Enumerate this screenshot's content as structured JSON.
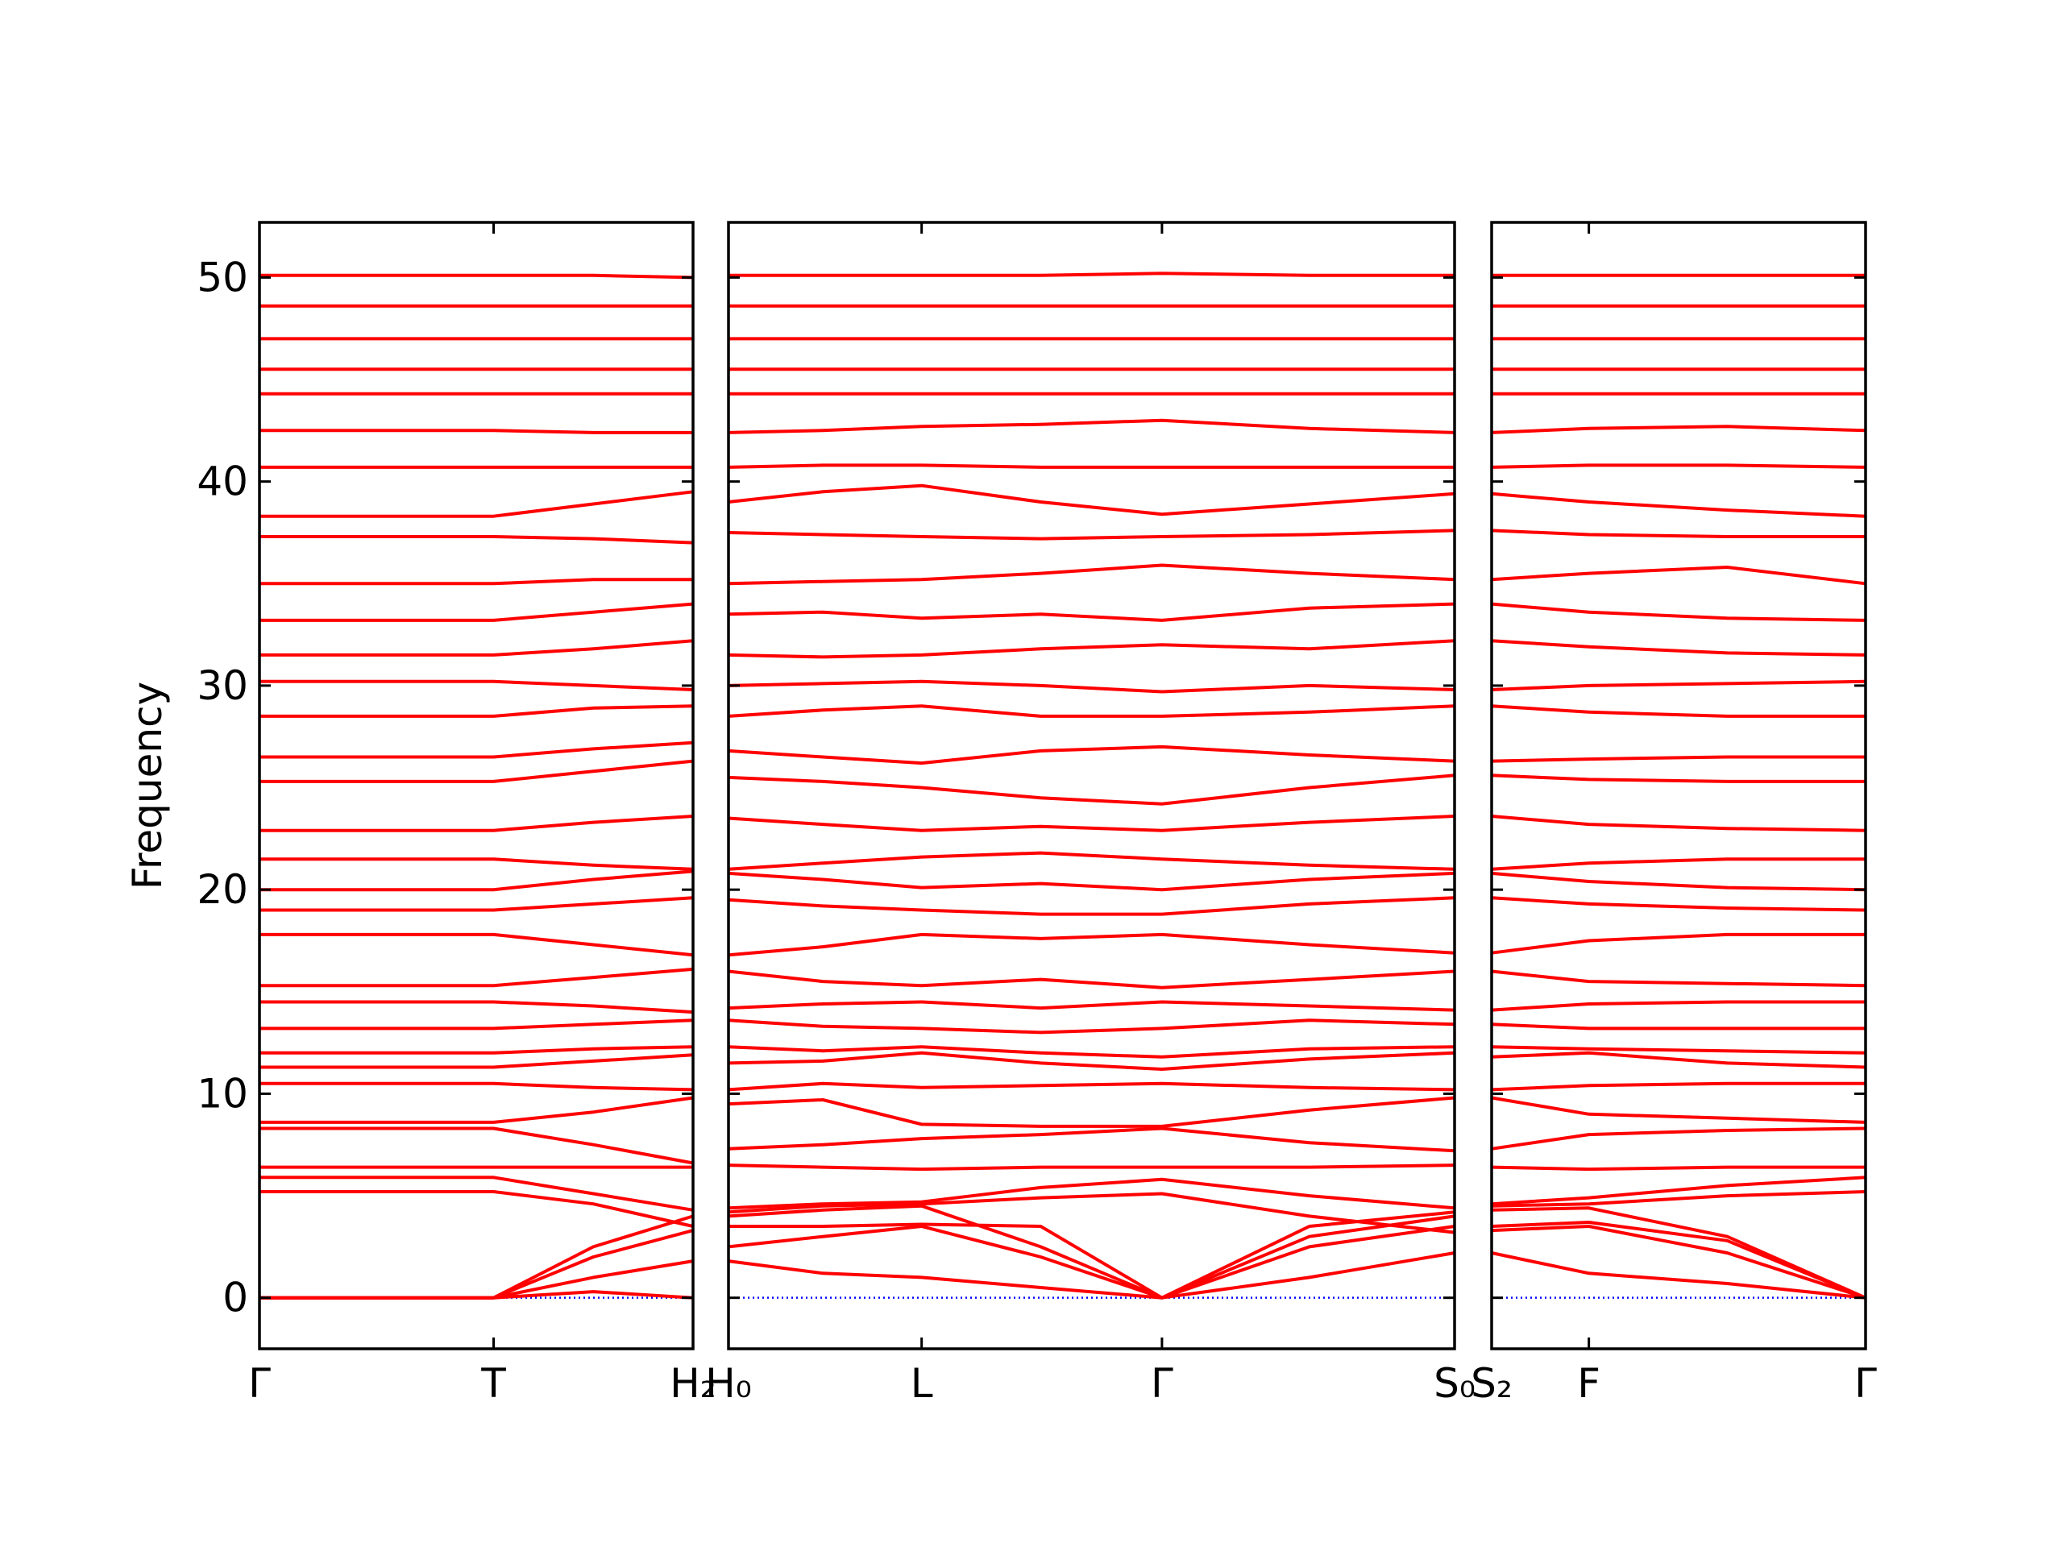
{
  "chart_data": [
    {
      "type": "line",
      "ylabel": "Frequency",
      "color": "red",
      "ylim": [
        -2.5,
        52.7
      ],
      "yticks": [
        0,
        10,
        20,
        30,
        40,
        50
      ],
      "show_ytick_labels": true,
      "zero_line": {
        "y": 0,
        "color": "blue",
        "style": "dotted"
      },
      "xlim": [
        0,
        1
      ],
      "xticks": [
        {
          "value": 0,
          "label": "Γ"
        },
        {
          "value": 0.54,
          "label": "T"
        },
        {
          "value": 1,
          "label": "H₂"
        }
      ],
      "x": [
        0,
        0.27,
        0.54,
        0.77,
        1
      ],
      "series": [
        {
          "values": [
            0,
            0,
            0,
            0.3,
            0
          ]
        },
        {
          "values": [
            0,
            0,
            0,
            1,
            1.8
          ]
        },
        {
          "values": [
            0,
            0,
            0,
            2,
            3.3
          ]
        },
        {
          "values": [
            0,
            0,
            0,
            2.5,
            4
          ]
        },
        {
          "values": [
            5.2,
            5.2,
            5.2,
            4.6,
            3.5
          ]
        },
        {
          "values": [
            5.9,
            5.9,
            5.9,
            5.1,
            4.3
          ]
        },
        {
          "values": [
            6.4,
            6.4,
            6.4,
            6.4,
            6.4
          ]
        },
        {
          "values": [
            8.3,
            8.3,
            8.3,
            7.5,
            6.6
          ]
        },
        {
          "values": [
            8.6,
            8.6,
            8.6,
            9.1,
            9.8
          ]
        },
        {
          "values": [
            10.5,
            10.5,
            10.5,
            10.3,
            10.2
          ]
        },
        {
          "values": [
            11.3,
            11.3,
            11.3,
            11.6,
            11.9
          ]
        },
        {
          "values": [
            12,
            12,
            12,
            12.2,
            12.3
          ]
        },
        {
          "values": [
            13.2,
            13.2,
            13.2,
            13.4,
            13.6
          ]
        },
        {
          "values": [
            14.5,
            14.5,
            14.5,
            14.3,
            14
          ]
        },
        {
          "values": [
            15.3,
            15.3,
            15.3,
            15.7,
            16.1
          ]
        },
        {
          "values": [
            17.8,
            17.8,
            17.8,
            17.3,
            16.8
          ]
        },
        {
          "values": [
            19,
            19,
            19,
            19.3,
            19.6
          ]
        },
        {
          "values": [
            20,
            20,
            20,
            20.5,
            20.9
          ]
        },
        {
          "values": [
            21.5,
            21.5,
            21.5,
            21.2,
            21
          ]
        },
        {
          "values": [
            22.9,
            22.9,
            22.9,
            23.3,
            23.6
          ]
        },
        {
          "values": [
            25.3,
            25.3,
            25.3,
            25.8,
            26.3
          ]
        },
        {
          "values": [
            26.5,
            26.5,
            26.5,
            26.9,
            27.2
          ]
        },
        {
          "values": [
            28.5,
            28.5,
            28.5,
            28.9,
            29
          ]
        },
        {
          "values": [
            30.2,
            30.2,
            30.2,
            30,
            29.8
          ]
        },
        {
          "values": [
            31.5,
            31.5,
            31.5,
            31.8,
            32.2
          ]
        },
        {
          "values": [
            33.2,
            33.2,
            33.2,
            33.6,
            34
          ]
        },
        {
          "values": [
            35,
            35,
            35,
            35.2,
            35.2
          ]
        },
        {
          "values": [
            37.3,
            37.3,
            37.3,
            37.2,
            37
          ]
        },
        {
          "values": [
            38.3,
            38.3,
            38.3,
            38.9,
            39.5
          ]
        },
        {
          "values": [
            40.7,
            40.7,
            40.7,
            40.7,
            40.7
          ]
        },
        {
          "values": [
            42.5,
            42.5,
            42.5,
            42.4,
            42.4
          ]
        },
        {
          "values": [
            44.3,
            44.3,
            44.3,
            44.3,
            44.3
          ]
        },
        {
          "values": [
            45.5,
            45.5,
            45.5,
            45.5,
            45.5
          ]
        },
        {
          "values": [
            47,
            47,
            47,
            47,
            47
          ]
        },
        {
          "values": [
            48.6,
            48.6,
            48.6,
            48.6,
            48.6
          ]
        },
        {
          "values": [
            50.1,
            50.1,
            50.1,
            50.1,
            50
          ]
        }
      ]
    },
    {
      "type": "line",
      "color": "red",
      "ylim": [
        -2.5,
        52.7
      ],
      "yticks": [
        0,
        10,
        20,
        30,
        40,
        50
      ],
      "show_ytick_labels": false,
      "zero_line": {
        "y": 0,
        "color": "blue",
        "style": "dotted"
      },
      "xlim": [
        0,
        1
      ],
      "xticks": [
        {
          "value": 0,
          "label": "H₀"
        },
        {
          "value": 0.266,
          "label": "L"
        },
        {
          "value": 0.597,
          "label": "Γ"
        },
        {
          "value": 1,
          "label": "S₀"
        }
      ],
      "x": [
        0,
        0.13,
        0.266,
        0.43,
        0.597,
        0.8,
        1
      ],
      "series": [
        {
          "values": [
            1.8,
            1.2,
            1,
            0.5,
            0,
            1,
            2.2
          ]
        },
        {
          "values": [
            2.5,
            3,
            3.5,
            2,
            0,
            2.5,
            3.5
          ]
        },
        {
          "values": [
            3.5,
            3.5,
            3.6,
            3.5,
            0,
            3,
            4
          ]
        },
        {
          "values": [
            4,
            4.3,
            4.5,
            2.5,
            0,
            3.5,
            4.2
          ]
        },
        {
          "values": [
            4.2,
            4.5,
            4.6,
            4.9,
            5.1,
            4,
            3.2
          ]
        },
        {
          "values": [
            4.4,
            4.6,
            4.7,
            5.4,
            5.8,
            5,
            4.4
          ]
        },
        {
          "values": [
            6.5,
            6.4,
            6.3,
            6.4,
            6.4,
            6.4,
            6.5
          ]
        },
        {
          "values": [
            7.3,
            7.5,
            7.8,
            8,
            8.3,
            7.6,
            7.2
          ]
        },
        {
          "values": [
            9.5,
            9.7,
            8.5,
            8.4,
            8.4,
            9.2,
            9.8
          ]
        },
        {
          "values": [
            10.2,
            10.5,
            10.3,
            10.4,
            10.5,
            10.3,
            10.2
          ]
        },
        {
          "values": [
            11.5,
            11.6,
            12,
            11.5,
            11.2,
            11.7,
            12
          ]
        },
        {
          "values": [
            12.3,
            12.1,
            12.3,
            12,
            11.8,
            12.2,
            12.3
          ]
        },
        {
          "values": [
            13.6,
            13.3,
            13.2,
            13,
            13.2,
            13.6,
            13.4
          ]
        },
        {
          "values": [
            14.2,
            14.4,
            14.5,
            14.2,
            14.5,
            14.3,
            14.1
          ]
        },
        {
          "values": [
            16,
            15.5,
            15.3,
            15.6,
            15.2,
            15.6,
            16
          ]
        },
        {
          "values": [
            16.8,
            17.2,
            17.8,
            17.6,
            17.8,
            17.3,
            16.9
          ]
        },
        {
          "values": [
            19.5,
            19.2,
            19,
            18.8,
            18.8,
            19.3,
            19.6
          ]
        },
        {
          "values": [
            20.8,
            20.5,
            20.1,
            20.3,
            20,
            20.5,
            20.8
          ]
        },
        {
          "values": [
            21,
            21.3,
            21.6,
            21.8,
            21.5,
            21.2,
            21
          ]
        },
        {
          "values": [
            23.5,
            23.2,
            22.9,
            23.1,
            22.9,
            23.3,
            23.6
          ]
        },
        {
          "values": [
            25.5,
            25.3,
            25,
            24.5,
            24.2,
            25,
            25.6
          ]
        },
        {
          "values": [
            26.8,
            26.5,
            26.2,
            26.8,
            27,
            26.6,
            26.3
          ]
        },
        {
          "values": [
            28.5,
            28.8,
            29,
            28.5,
            28.5,
            28.7,
            29
          ]
        },
        {
          "values": [
            30,
            30.1,
            30.2,
            30,
            29.7,
            30,
            29.8
          ]
        },
        {
          "values": [
            31.5,
            31.4,
            31.5,
            31.8,
            32,
            31.8,
            32.2
          ]
        },
        {
          "values": [
            33.5,
            33.6,
            33.3,
            33.5,
            33.2,
            33.8,
            34
          ]
        },
        {
          "values": [
            35,
            35.1,
            35.2,
            35.5,
            35.9,
            35.5,
            35.2
          ]
        },
        {
          "values": [
            37.5,
            37.4,
            37.3,
            37.2,
            37.3,
            37.4,
            37.6
          ]
        },
        {
          "values": [
            39,
            39.5,
            39.8,
            39,
            38.4,
            38.9,
            39.4
          ]
        },
        {
          "values": [
            40.7,
            40.8,
            40.8,
            40.7,
            40.7,
            40.7,
            40.7
          ]
        },
        {
          "values": [
            42.4,
            42.5,
            42.7,
            42.8,
            43,
            42.6,
            42.4
          ]
        },
        {
          "values": [
            44.3,
            44.3,
            44.3,
            44.3,
            44.3,
            44.3,
            44.3
          ]
        },
        {
          "values": [
            45.5,
            45.5,
            45.5,
            45.5,
            45.5,
            45.5,
            45.5
          ]
        },
        {
          "values": [
            47,
            47,
            47,
            47,
            47,
            47,
            47
          ]
        },
        {
          "values": [
            48.6,
            48.6,
            48.6,
            48.6,
            48.6,
            48.6,
            48.6
          ]
        },
        {
          "values": [
            50.1,
            50.1,
            50.1,
            50.1,
            50.2,
            50.1,
            50.1
          ]
        }
      ]
    },
    {
      "type": "line",
      "color": "red",
      "ylim": [
        -2.5,
        52.7
      ],
      "yticks": [
        0,
        10,
        20,
        30,
        40,
        50
      ],
      "show_ytick_labels": false,
      "zero_line": {
        "y": 0,
        "color": "blue",
        "style": "dotted"
      },
      "xlim": [
        0,
        1
      ],
      "xticks": [
        {
          "value": 0,
          "label": "S₂"
        },
        {
          "value": 0.26,
          "label": "F"
        },
        {
          "value": 1,
          "label": "Γ"
        }
      ],
      "x": [
        0,
        0.26,
        0.63,
        1
      ],
      "series": [
        {
          "values": [
            2.2,
            1.2,
            0.7,
            0
          ]
        },
        {
          "values": [
            3.3,
            3.5,
            2.2,
            0
          ]
        },
        {
          "values": [
            3.5,
            3.7,
            2.8,
            0
          ]
        },
        {
          "values": [
            4.3,
            4.4,
            3,
            0
          ]
        },
        {
          "values": [
            4.5,
            4.6,
            5,
            5.2
          ]
        },
        {
          "values": [
            4.6,
            4.9,
            5.5,
            5.9
          ]
        },
        {
          "values": [
            6.4,
            6.3,
            6.4,
            6.4
          ]
        },
        {
          "values": [
            7.3,
            8,
            8.2,
            8.3
          ]
        },
        {
          "values": [
            9.8,
            9,
            8.8,
            8.6
          ]
        },
        {
          "values": [
            10.2,
            10.4,
            10.5,
            10.5
          ]
        },
        {
          "values": [
            11.8,
            12,
            11.5,
            11.3
          ]
        },
        {
          "values": [
            12.3,
            12.2,
            12.1,
            12
          ]
        },
        {
          "values": [
            13.4,
            13.2,
            13.2,
            13.2
          ]
        },
        {
          "values": [
            14.1,
            14.4,
            14.5,
            14.5
          ]
        },
        {
          "values": [
            16,
            15.5,
            15.4,
            15.3
          ]
        },
        {
          "values": [
            16.9,
            17.5,
            17.8,
            17.8
          ]
        },
        {
          "values": [
            19.6,
            19.3,
            19.1,
            19
          ]
        },
        {
          "values": [
            20.8,
            20.4,
            20.1,
            20
          ]
        },
        {
          "values": [
            21,
            21.3,
            21.5,
            21.5
          ]
        },
        {
          "values": [
            23.6,
            23.2,
            23,
            22.9
          ]
        },
        {
          "values": [
            25.6,
            25.4,
            25.3,
            25.3
          ]
        },
        {
          "values": [
            26.3,
            26.4,
            26.5,
            26.5
          ]
        },
        {
          "values": [
            29,
            28.7,
            28.5,
            28.5
          ]
        },
        {
          "values": [
            29.8,
            30,
            30.1,
            30.2
          ]
        },
        {
          "values": [
            32.2,
            31.9,
            31.6,
            31.5
          ]
        },
        {
          "values": [
            34,
            33.6,
            33.3,
            33.2
          ]
        },
        {
          "values": [
            35.2,
            35.5,
            35.8,
            35
          ]
        },
        {
          "values": [
            37.6,
            37.4,
            37.3,
            37.3
          ]
        },
        {
          "values": [
            39.4,
            39,
            38.6,
            38.3
          ]
        },
        {
          "values": [
            40.7,
            40.8,
            40.8,
            40.7
          ]
        },
        {
          "values": [
            42.4,
            42.6,
            42.7,
            42.5
          ]
        },
        {
          "values": [
            44.3,
            44.3,
            44.3,
            44.3
          ]
        },
        {
          "values": [
            45.5,
            45.5,
            45.5,
            45.5
          ]
        },
        {
          "values": [
            47,
            47,
            47,
            47
          ]
        },
        {
          "values": [
            48.6,
            48.6,
            48.6,
            48.6
          ]
        },
        {
          "values": [
            50.1,
            50.1,
            50.1,
            50.1
          ]
        }
      ]
    }
  ]
}
